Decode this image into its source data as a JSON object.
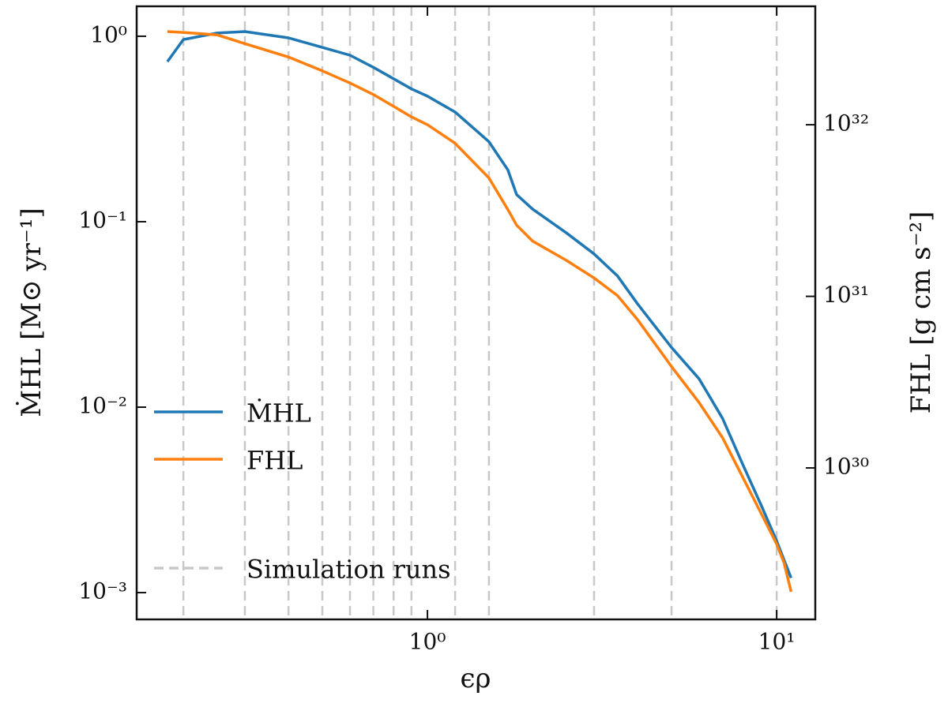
{
  "chart_data": {
    "type": "line",
    "xlabel": "ϵρ",
    "ylabel": "ṀHL [M⊙ yr⁻¹]",
    "y2label": "FHL [g cm s⁻²]",
    "xscale": "log",
    "yscale": "log",
    "y2scale": "log",
    "xlim": [
      0.147,
      12.9
    ],
    "ylim": [
      0.000717,
      1.45
    ],
    "y2lim": [
      1.31e+29,
      4.9e+32
    ],
    "xticks": [
      {
        "value": 1,
        "label": "10⁰"
      },
      {
        "value": 10,
        "label": "10¹"
      }
    ],
    "yticks": [
      {
        "value": 0.001,
        "label": "10⁻³"
      },
      {
        "value": 0.01,
        "label": "10⁻²"
      },
      {
        "value": 0.1,
        "label": "10⁻¹"
      },
      {
        "value": 1,
        "label": "10⁰"
      }
    ],
    "y2ticks": [
      {
        "value": 1e+30,
        "label": "10³⁰"
      },
      {
        "value": 1e+31,
        "label": "10³¹"
      },
      {
        "value": 1e+32,
        "label": "10³²"
      }
    ],
    "legend": "lower left",
    "x": [
      0.18,
      0.2,
      0.25,
      0.3,
      0.4,
      0.5,
      0.6,
      0.7,
      0.8,
      0.9,
      1.0,
      1.2,
      1.5,
      1.7,
      1.8,
      2.0,
      2.5,
      3.0,
      3.5,
      4.0,
      5.0,
      6.0,
      7.0,
      8.0,
      9.0,
      10,
      10.5,
      11
    ],
    "series": [
      {
        "name": "ṀHL",
        "color": "#1f77b4",
        "axis": "y",
        "values": [
          0.73,
          0.96,
          1.04,
          1.06,
          0.98,
          0.87,
          0.79,
          0.68,
          0.59,
          0.52,
          0.475,
          0.39,
          0.27,
          0.19,
          0.14,
          0.117,
          0.087,
          0.067,
          0.051,
          0.036,
          0.021,
          0.0142,
          0.0087,
          0.0049,
          0.003,
          0.0019,
          0.0015,
          0.0012
        ]
      },
      {
        "name": "FHL",
        "color": "#ff7f0e",
        "axis": "y2",
        "values": [
          3.49e+32,
          3.45e+32,
          3.34e+32,
          2.97e+32,
          2.48e+32,
          2.06e+32,
          1.75e+32,
          1.5e+32,
          1.28e+32,
          1.11e+32,
          1e+32,
          7.8e+31,
          4.9e+31,
          3.2e+31,
          2.6e+31,
          2.1e+31,
          1.62e+31,
          1.28e+31,
          1.01e+31,
          7.3e+30,
          3.9e+30,
          2.4e+30,
          1.5e+30,
          8.8e+29,
          5.5e+29,
          3.6e+29,
          2.8e+29,
          1.9e+29
        ]
      }
    ],
    "vlines": {
      "name": "Simulation runs",
      "color": "#c8c8c8",
      "x": [
        0.2,
        0.3,
        0.4,
        0.5,
        0.6,
        0.7,
        0.8,
        0.9,
        1.2,
        1.5,
        3,
        5,
        10
      ]
    }
  }
}
